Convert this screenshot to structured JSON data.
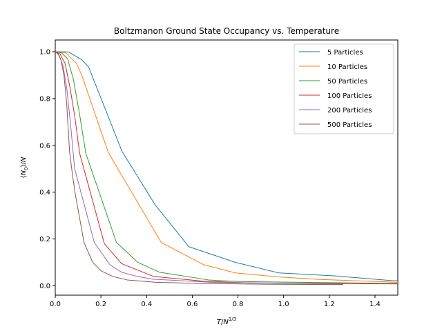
{
  "chart_data": {
    "type": "line",
    "title": "Boltzmanon Ground State Occupancy vs. Temperature",
    "xlabel": "T/N^{1/3}",
    "ylabel": "⟨N_0⟩/N",
    "xlim": [
      0.0,
      1.5
    ],
    "ylim": [
      -0.04,
      1.05
    ],
    "xticks": [
      0.0,
      0.2,
      0.4,
      0.6,
      0.8,
      1.0,
      1.2,
      1.4
    ],
    "xtick_labels": [
      "0.0",
      "0.2",
      "0.4",
      "0.6",
      "0.8",
      "1.0",
      "1.2",
      "1.4"
    ],
    "yticks": [
      0.0,
      0.2,
      0.4,
      0.6,
      0.8,
      1.0
    ],
    "ytick_labels": [
      "0.0",
      "0.2",
      "0.4",
      "0.6",
      "0.8",
      "1.0"
    ],
    "grid": false,
    "legend_position": "top-right",
    "series": [
      {
        "name": "5 Particles",
        "color": "#1f77b4",
        "x": [
          0.0,
          0.058,
          0.117,
          0.146,
          0.292,
          0.438,
          0.585,
          0.789,
          0.979,
          1.227,
          1.476,
          1.5
        ],
        "y": [
          1.0,
          0.999,
          0.965,
          0.935,
          0.575,
          0.345,
          0.167,
          0.1,
          0.055,
          0.042,
          0.022,
          0.022
        ]
      },
      {
        "name": "10 Particles",
        "color": "#ff7f0e",
        "x": [
          0.0,
          0.046,
          0.093,
          0.116,
          0.232,
          0.464,
          0.65,
          0.789,
          0.975,
          1.16,
          1.5
        ],
        "y": [
          1.0,
          0.995,
          0.95,
          0.9,
          0.57,
          0.185,
          0.09,
          0.055,
          0.038,
          0.027,
          0.015
        ]
      },
      {
        "name": "50 Particles",
        "color": "#2ca02c",
        "x": [
          0.0,
          0.027,
          0.054,
          0.08,
          0.107,
          0.134,
          0.268,
          0.362,
          0.456,
          0.671,
          0.805,
          1.5
        ],
        "y": [
          1.0,
          0.995,
          0.97,
          0.88,
          0.73,
          0.565,
          0.185,
          0.1,
          0.058,
          0.025,
          0.018,
          0.01
        ]
      },
      {
        "name": "100 Particles",
        "color": "#d62728",
        "x": [
          0.0,
          0.021,
          0.043,
          0.064,
          0.086,
          0.107,
          0.215,
          0.29,
          0.43,
          0.645,
          0.86,
          1.5
        ],
        "y": [
          1.0,
          0.99,
          0.95,
          0.85,
          0.72,
          0.565,
          0.18,
          0.095,
          0.04,
          0.02,
          0.012,
          0.008
        ]
      },
      {
        "name": "200 Particles",
        "color": "#9467bd",
        "x": [
          0.0,
          0.017,
          0.034,
          0.051,
          0.068,
          0.085,
          0.171,
          0.239,
          0.29,
          0.359,
          0.427,
          0.684,
          1.26
        ],
        "y": [
          1.0,
          0.985,
          0.94,
          0.84,
          0.68,
          0.5,
          0.185,
          0.09,
          0.058,
          0.04,
          0.028,
          0.015,
          0.007
        ]
      },
      {
        "name": "500 Particles",
        "color": "#8c564b",
        "x": [
          0.0,
          0.013,
          0.025,
          0.038,
          0.05,
          0.063,
          0.076,
          0.088,
          0.126,
          0.164,
          0.202,
          0.252,
          0.315,
          0.441,
          0.63,
          0.882,
          1.26
        ],
        "y": [
          1.0,
          0.99,
          0.965,
          0.9,
          0.78,
          0.57,
          0.47,
          0.39,
          0.185,
          0.1,
          0.063,
          0.04,
          0.025,
          0.015,
          0.01,
          0.007,
          0.005
        ]
      }
    ]
  }
}
